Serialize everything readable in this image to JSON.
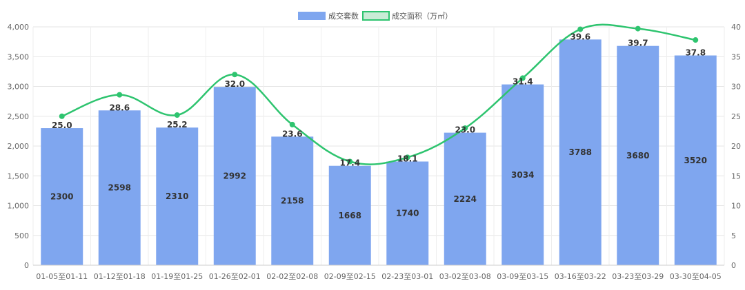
{
  "chart_data": {
    "type": "bar",
    "categories": [
      "01-05至01-11",
      "01-12至01-18",
      "01-19至01-25",
      "01-26至02-01",
      "02-02至02-08",
      "02-09至02-15",
      "02-23至03-01",
      "03-02至03-08",
      "03-09至03-15",
      "03-16至03-22",
      "03-23至03-29",
      "03-30至04-05"
    ],
    "series": [
      {
        "name": "成交套数",
        "type": "bar",
        "axis": "left",
        "values": [
          2300,
          2598,
          2310,
          2992,
          2158,
          1668,
          1740,
          2224,
          3034,
          3788,
          3680,
          3520
        ],
        "color": "#7fa6ef"
      },
      {
        "name": "成交面积（万㎡）",
        "type": "line",
        "axis": "right",
        "values": [
          25.0,
          28.6,
          25.2,
          32.0,
          23.6,
          17.4,
          18.1,
          23.0,
          31.4,
          39.6,
          39.7,
          37.8
        ],
        "color": "#2ec46f"
      }
    ],
    "y_left": {
      "min": 0,
      "max": 4000,
      "ticks": [
        "0",
        "500",
        "1,000",
        "1,500",
        "2,000",
        "2,500",
        "3,000",
        "3,500",
        "4,000"
      ]
    },
    "y_right": {
      "min": 0,
      "max": 40,
      "ticks": [
        "0",
        "5",
        "10",
        "15",
        "20",
        "25",
        "30",
        "35",
        "40"
      ]
    },
    "grid": true,
    "legend": "top-center"
  }
}
